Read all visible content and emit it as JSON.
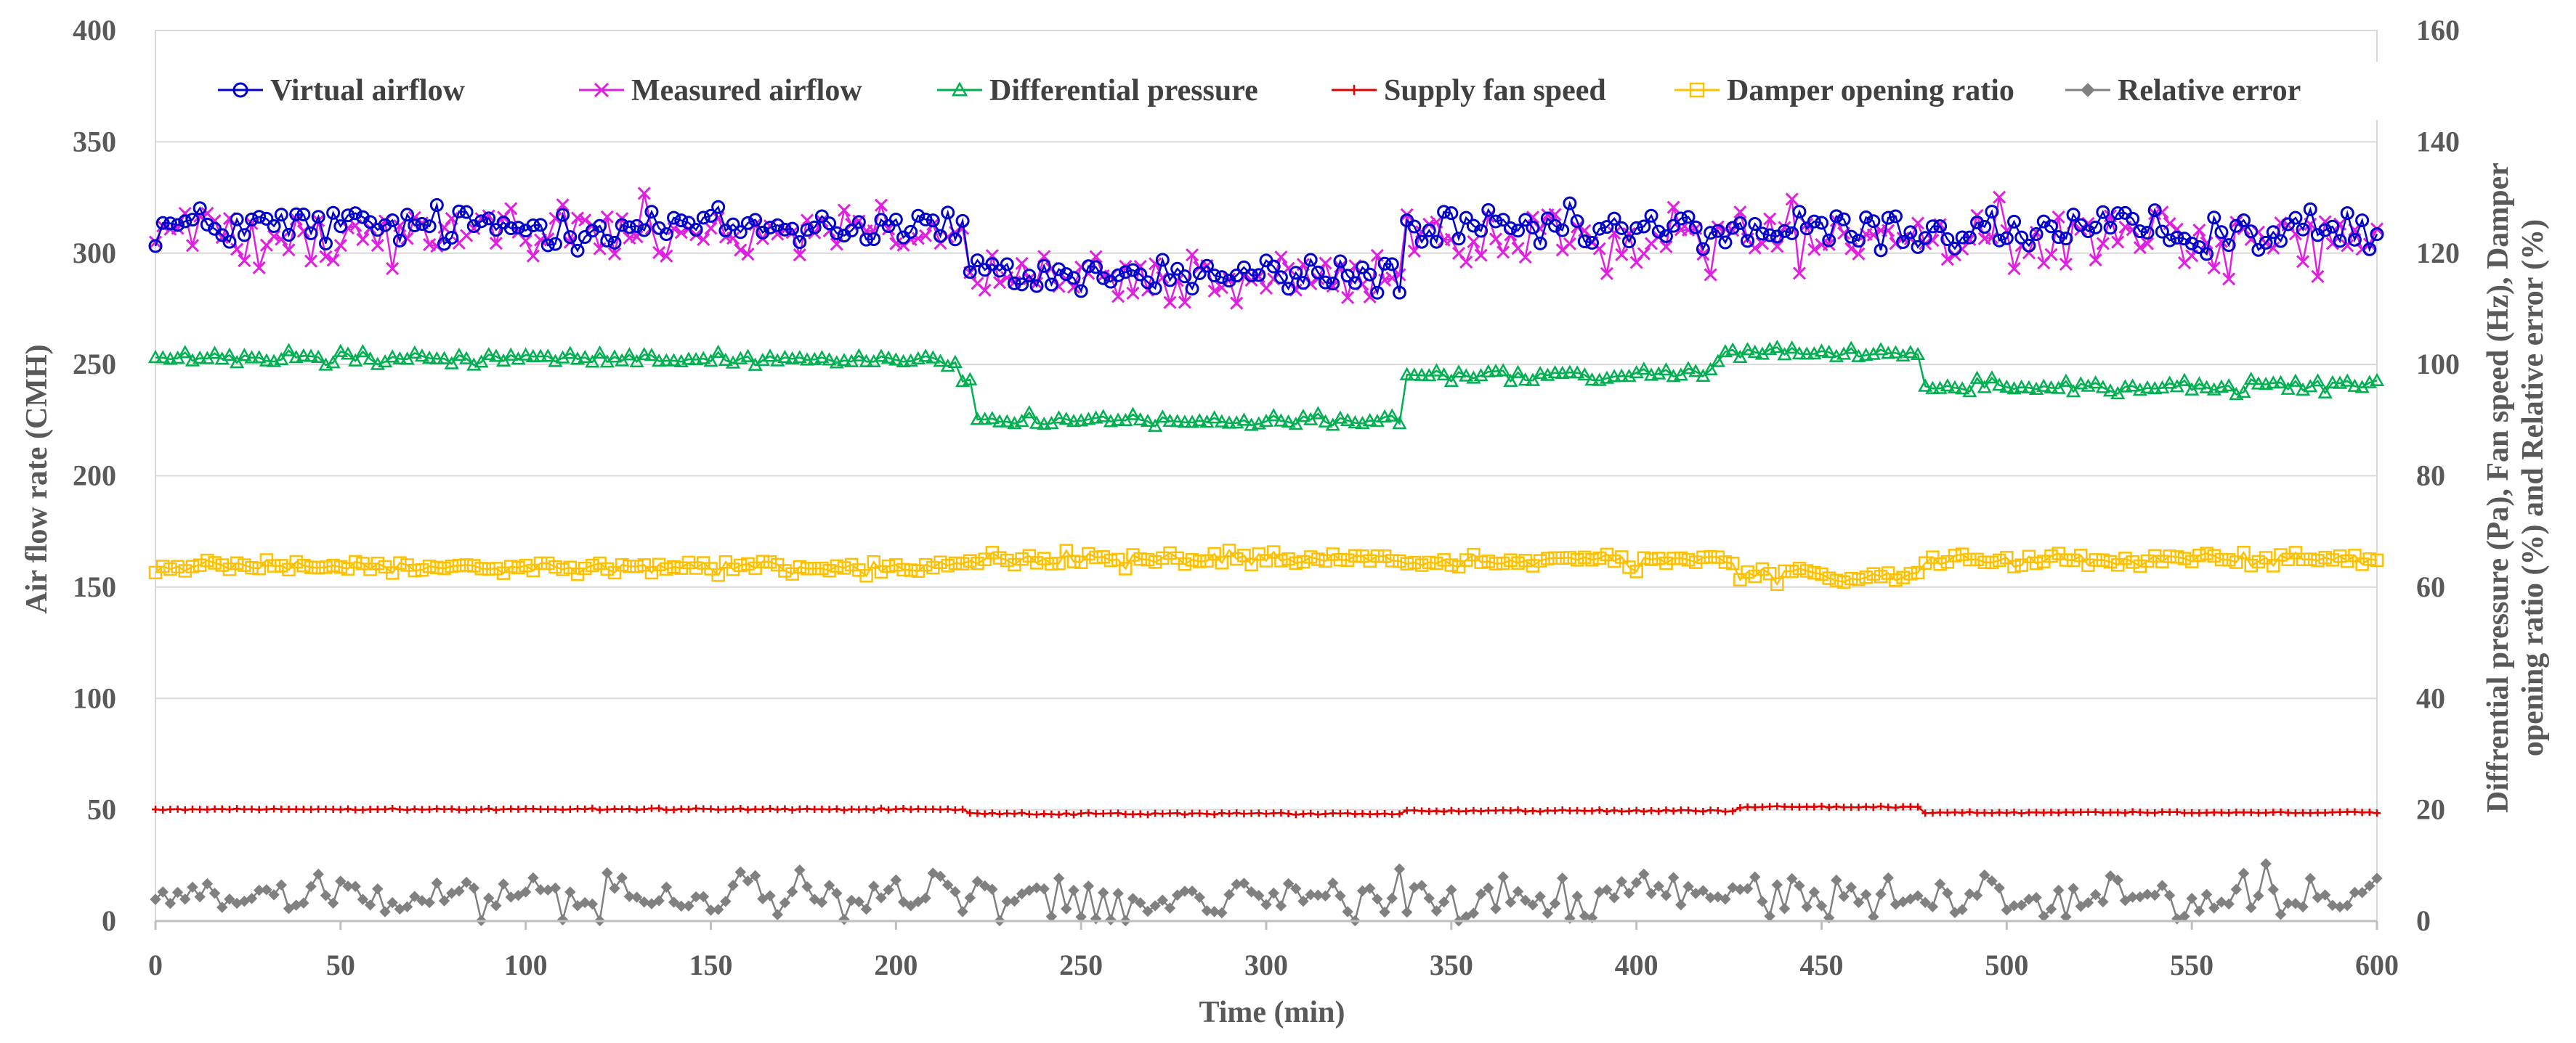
{
  "chart_data": {
    "type": "line",
    "title": "",
    "xlabel": "Time (min)",
    "ylabel": "Air flow rate (CMH)",
    "y2label_lines": [
      "Diffrential  pressure  (Pa), Fan speed (Hz), Damper",
      "opening ratio (%) and Relative error (%)"
    ],
    "xlim": [
      0,
      600
    ],
    "ylim": [
      0,
      400
    ],
    "y2lim": [
      0,
      160
    ],
    "x_ticks": [
      0,
      50,
      100,
      150,
      200,
      250,
      300,
      350,
      400,
      450,
      500,
      550,
      600
    ],
    "y_ticks": [
      0,
      50,
      100,
      150,
      200,
      250,
      300,
      350,
      400
    ],
    "y2_ticks": [
      0,
      20,
      40,
      60,
      80,
      100,
      120,
      140,
      160
    ],
    "grid": "horizontal",
    "legend": "top",
    "sample_interval_min": 2,
    "series": [
      {
        "name": "Virtual airflow",
        "axis": "left",
        "color": "#0000CC",
        "marker": "circle",
        "segments": [
          {
            "from": 0,
            "to": 218,
            "level": 312,
            "noise": 9
          },
          {
            "from": 220,
            "to": 336,
            "level": 290,
            "noise": 8
          },
          {
            "from": 338,
            "to": 600,
            "level": 310,
            "noise": 9
          }
        ]
      },
      {
        "name": "Measured airflow",
        "axis": "left",
        "color": "#E020E0",
        "marker": "x",
        "segments": [
          {
            "from": 0,
            "to": 218,
            "level": 310,
            "noise": 13
          },
          {
            "from": 220,
            "to": 336,
            "level": 287,
            "noise": 12
          },
          {
            "from": 338,
            "to": 600,
            "level": 306,
            "noise": 13
          }
        ]
      },
      {
        "name": "Differential pressure",
        "axis": "right",
        "color": "#00B050",
        "marker": "triangle",
        "segments": [
          {
            "from": 0,
            "to": 216,
            "level": 101,
            "noise": 1.2
          },
          {
            "from": 218,
            "to": 220,
            "level": 97,
            "noise": 0.5
          },
          {
            "from": 222,
            "to": 336,
            "level": 90,
            "noise": 1.0
          },
          {
            "from": 338,
            "to": 420,
            "level": 98,
            "noise": 1.2
          },
          {
            "from": 422,
            "to": 476,
            "level": 102,
            "noise": 1.2
          },
          {
            "from": 478,
            "to": 600,
            "level": 96,
            "noise": 1.2
          }
        ]
      },
      {
        "name": "Supply fan speed",
        "axis": "right",
        "color": "#E00000",
        "marker": "plus",
        "segments": [
          {
            "from": 0,
            "to": 218,
            "level": 20.1,
            "noise": 0.15
          },
          {
            "from": 220,
            "to": 336,
            "level": 19.3,
            "noise": 0.15
          },
          {
            "from": 338,
            "to": 426,
            "level": 19.8,
            "noise": 0.15
          },
          {
            "from": 428,
            "to": 476,
            "level": 20.5,
            "noise": 0.15
          },
          {
            "from": 478,
            "to": 600,
            "level": 19.5,
            "noise": 0.15
          }
        ]
      },
      {
        "name": "Damper opening ratio",
        "axis": "right",
        "color": "#FFC000",
        "marker": "square",
        "segments": [
          {
            "from": 0,
            "to": 218,
            "level": 63.5,
            "noise": 1.2
          },
          {
            "from": 220,
            "to": 336,
            "level": 65,
            "noise": 1.2
          },
          {
            "from": 338,
            "to": 426,
            "level": 64.5,
            "noise": 1.2
          },
          {
            "from": 428,
            "to": 476,
            "level": 62,
            "noise": 1.3
          },
          {
            "from": 478,
            "to": 600,
            "level": 65,
            "noise": 1.2
          }
        ]
      },
      {
        "name": "Relative error",
        "axis": "right",
        "color": "#808080",
        "marker": "diamond",
        "segments": [
          {
            "from": 0,
            "to": 600,
            "level": 4.5,
            "noise": 4.2,
            "min": 0
          }
        ]
      }
    ]
  }
}
